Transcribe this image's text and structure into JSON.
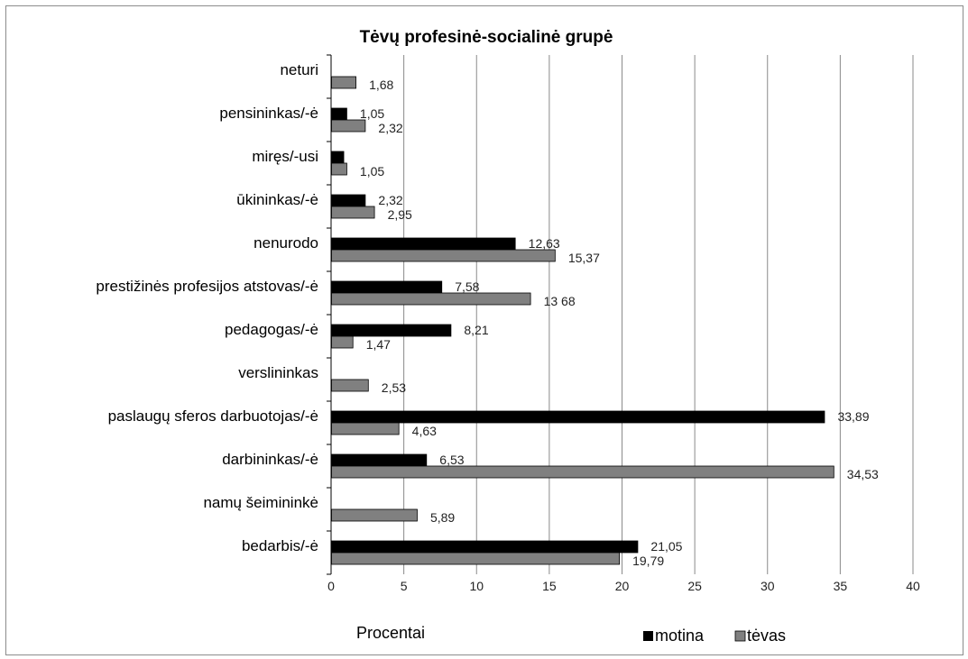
{
  "chart_data": {
    "type": "bar",
    "orientation": "horizontal",
    "title": "Tėvų profesinė-socialinė grupė",
    "xlabel": "Procentai",
    "xlim": [
      0,
      40
    ],
    "xticks": [
      0,
      5,
      10,
      15,
      20,
      25,
      30,
      35,
      40
    ],
    "grid": true,
    "legend_position": "bottom",
    "categories": [
      "neturi",
      "pensininkas/-ė",
      "miręs/-usi",
      "ūkininkas/-ė",
      "nenurodo",
      "prestižinės profesijos atstovas/-ė",
      "pedagogas/-ė",
      "verslininkas",
      "paslaugų sferos darbuotojas/-ė",
      "darbininkas/-ė",
      "namų šeimininkė",
      "bedarbis/-ė"
    ],
    "series": [
      {
        "name": "motina",
        "color": "#000000",
        "values": [
          null,
          1.05,
          0.84,
          2.32,
          12.63,
          7.58,
          8.21,
          null,
          33.89,
          6.53,
          null,
          21.05
        ],
        "labels": [
          "",
          "1,05",
          "",
          "2,32",
          "12,63",
          "7,58",
          "8,21",
          "",
          "33,89",
          "6,53",
          "",
          "21,05"
        ]
      },
      {
        "name": "tėvas",
        "color": "#808080",
        "values": [
          1.68,
          2.32,
          1.05,
          2.95,
          15.37,
          13.68,
          1.47,
          2.53,
          4.63,
          34.53,
          5.89,
          19.79
        ],
        "labels": [
          "1,68",
          "2,32",
          "1,05",
          "2,95",
          "15,37",
          "13 68",
          "1,47",
          "2,53",
          "4,63",
          "34,53",
          "5,89",
          "19,79"
        ]
      }
    ]
  }
}
